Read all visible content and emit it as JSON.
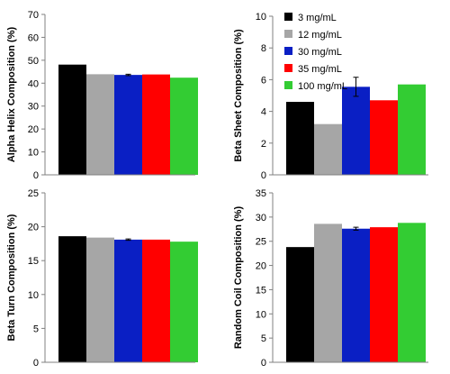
{
  "chart_data": [
    {
      "type": "bar",
      "ylabel": "Alpha Helix Composition (%)",
      "ylim": [
        0,
        70
      ],
      "yticks": [
        0,
        10,
        20,
        30,
        40,
        50,
        60,
        70
      ],
      "categories": [
        "3 mg/mL",
        "12 mg/mL",
        "30 mg/mL",
        "35 mg/mL",
        "100 mg/mL"
      ],
      "values": [
        48.1,
        43.9,
        43.6,
        43.8,
        42.4
      ],
      "errors": [
        0,
        0,
        0.3,
        0,
        0
      ],
      "grid": false,
      "legend": false
    },
    {
      "type": "bar",
      "ylabel": "Beta Sheet Composition (%)",
      "ylim": [
        0,
        10
      ],
      "yticks": [
        0,
        2,
        4,
        6,
        8,
        10
      ],
      "categories": [
        "3 mg/mL",
        "12 mg/mL",
        "30 mg/mL",
        "35 mg/mL",
        "100 mg/mL"
      ],
      "values": [
        4.6,
        3.2,
        5.55,
        4.7,
        5.7
      ],
      "errors": [
        0,
        0,
        0.6,
        0,
        0
      ],
      "grid": false,
      "legend": true,
      "legend_placement": "top-left"
    },
    {
      "type": "bar",
      "ylabel": "Beta Turn Composition (%)",
      "ylim": [
        0,
        25
      ],
      "yticks": [
        0,
        5,
        10,
        15,
        20,
        25
      ],
      "categories": [
        "3 mg/mL",
        "12 mg/mL",
        "30 mg/mL",
        "35 mg/mL",
        "100 mg/mL"
      ],
      "values": [
        18.6,
        18.4,
        18.1,
        18.1,
        17.8
      ],
      "errors": [
        0,
        0,
        0.1,
        0,
        0
      ],
      "grid": false,
      "legend": false
    },
    {
      "type": "bar",
      "ylabel": "Random Coil Composition (%)",
      "ylim": [
        0,
        35
      ],
      "yticks": [
        0,
        5,
        10,
        15,
        20,
        25,
        30,
        35
      ],
      "categories": [
        "3 mg/mL",
        "12 mg/mL",
        "30 mg/mL",
        "35 mg/mL",
        "100 mg/mL"
      ],
      "values": [
        23.8,
        28.6,
        27.6,
        27.9,
        28.8
      ],
      "errors": [
        0,
        0,
        0.3,
        0,
        0
      ],
      "grid": false,
      "legend": false
    }
  ],
  "series_colors": [
    "#000000",
    "#a6a6a6",
    "#0a1fc4",
    "#ff0000",
    "#33cc33"
  ]
}
